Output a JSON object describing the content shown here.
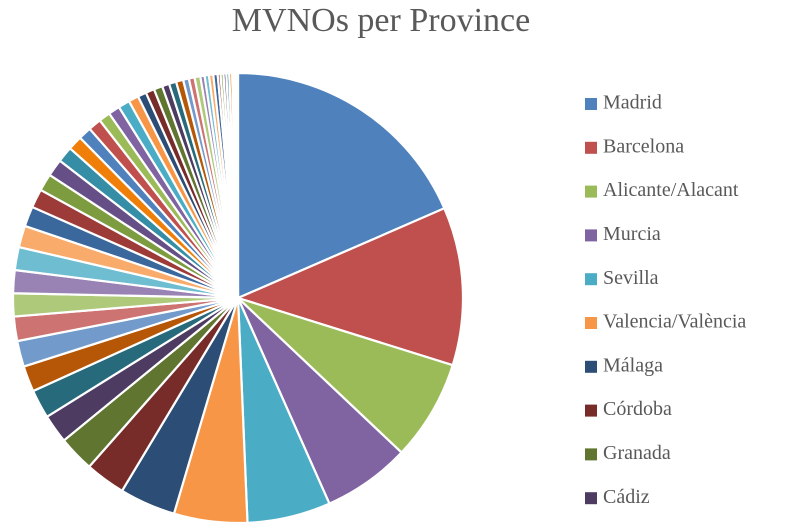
{
  "chart_data": {
    "type": "pie",
    "title": "MVNOs per Province",
    "categories": [
      "Madrid",
      "Barcelona",
      "Alicante/Alacant",
      "Murcia",
      "Sevilla",
      "Valencia/València",
      "Málaga",
      "Córdoba",
      "Granada",
      "Cádiz",
      null,
      null,
      null,
      null,
      null,
      null,
      null,
      null,
      null,
      null,
      null,
      null,
      null,
      null,
      null,
      null,
      null,
      null,
      null,
      null,
      null,
      null,
      null,
      null,
      null,
      null,
      null,
      null,
      null,
      null,
      null,
      null,
      null,
      null,
      null,
      null,
      null,
      null,
      null,
      null,
      null,
      null
    ],
    "values": [
      17.9,
      11,
      7,
      6.1,
      5.8,
      5.1,
      3.9,
      2.8,
      2.5,
      2,
      2,
      1.8,
      1.8,
      1.7,
      1.6,
      1.6,
      1.6,
      1.5,
      1.4,
      1.3,
      1.2,
      1.2,
      1.1,
      1,
      0.9,
      0.9,
      0.8,
      0.8,
      0.8,
      0.7,
      0.6,
      0.6,
      0.6,
      0.5,
      0.5,
      0.5,
      0.4,
      0.4,
      0.4,
      0.3,
      0.3,
      0.3,
      0.3,
      0.2,
      0.2,
      0.2,
      0.2,
      0.2,
      0.1,
      0.1,
      0.1,
      0.1
    ],
    "colors": [
      "#4f81bd",
      "#c0504d",
      "#9bbb59",
      "#8064a2",
      "#4bacc6",
      "#f79646",
      "#2c4d75",
      "#772c2a",
      "#5f7530",
      "#4d3b62",
      "#276a7c",
      "#b65708",
      "#729aca",
      "#cd7371",
      "#afc97a",
      "#9983b5",
      "#6fbdd1",
      "#f9ab6b",
      "#3a679c",
      "#9d3b38",
      "#7d9c40",
      "#664f86",
      "#358ea6",
      "#f07f09"
    ],
    "legend": "right"
  }
}
